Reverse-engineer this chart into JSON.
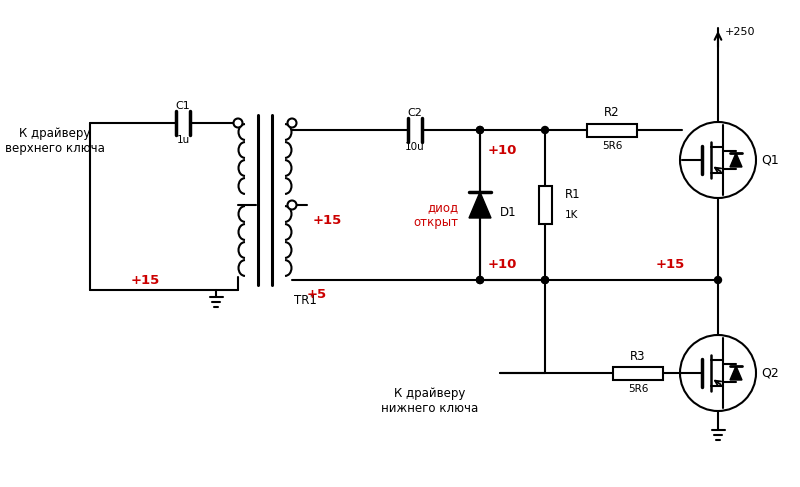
{
  "bg": "#ffffff",
  "lc": "#000000",
  "rc": "#cc0000",
  "figsize": [
    8.0,
    4.87
  ],
  "dpi": 100,
  "C1": "C1",
  "C1v": "1u",
  "C2": "C2",
  "C2v": "10u",
  "R1": "R1",
  "R1v": "1K",
  "R2": "R2",
  "R2v": "5R6",
  "R3": "R3",
  "R3v": "5R6",
  "D1": "D1",
  "TR1": "TR1",
  "Q1": "Q1",
  "Q2": "Q2",
  "p250": "+250",
  "p15a": "+15",
  "p15b": "+15",
  "p15c": "+15",
  "p10a": "+10",
  "p10b": "+10",
  "p5": "+5",
  "diod": "диод\nоткрыт",
  "drv_top": "К драйверу\nверхнего ключа",
  "drv_bot": "К драйверу\nнижнего ключа"
}
